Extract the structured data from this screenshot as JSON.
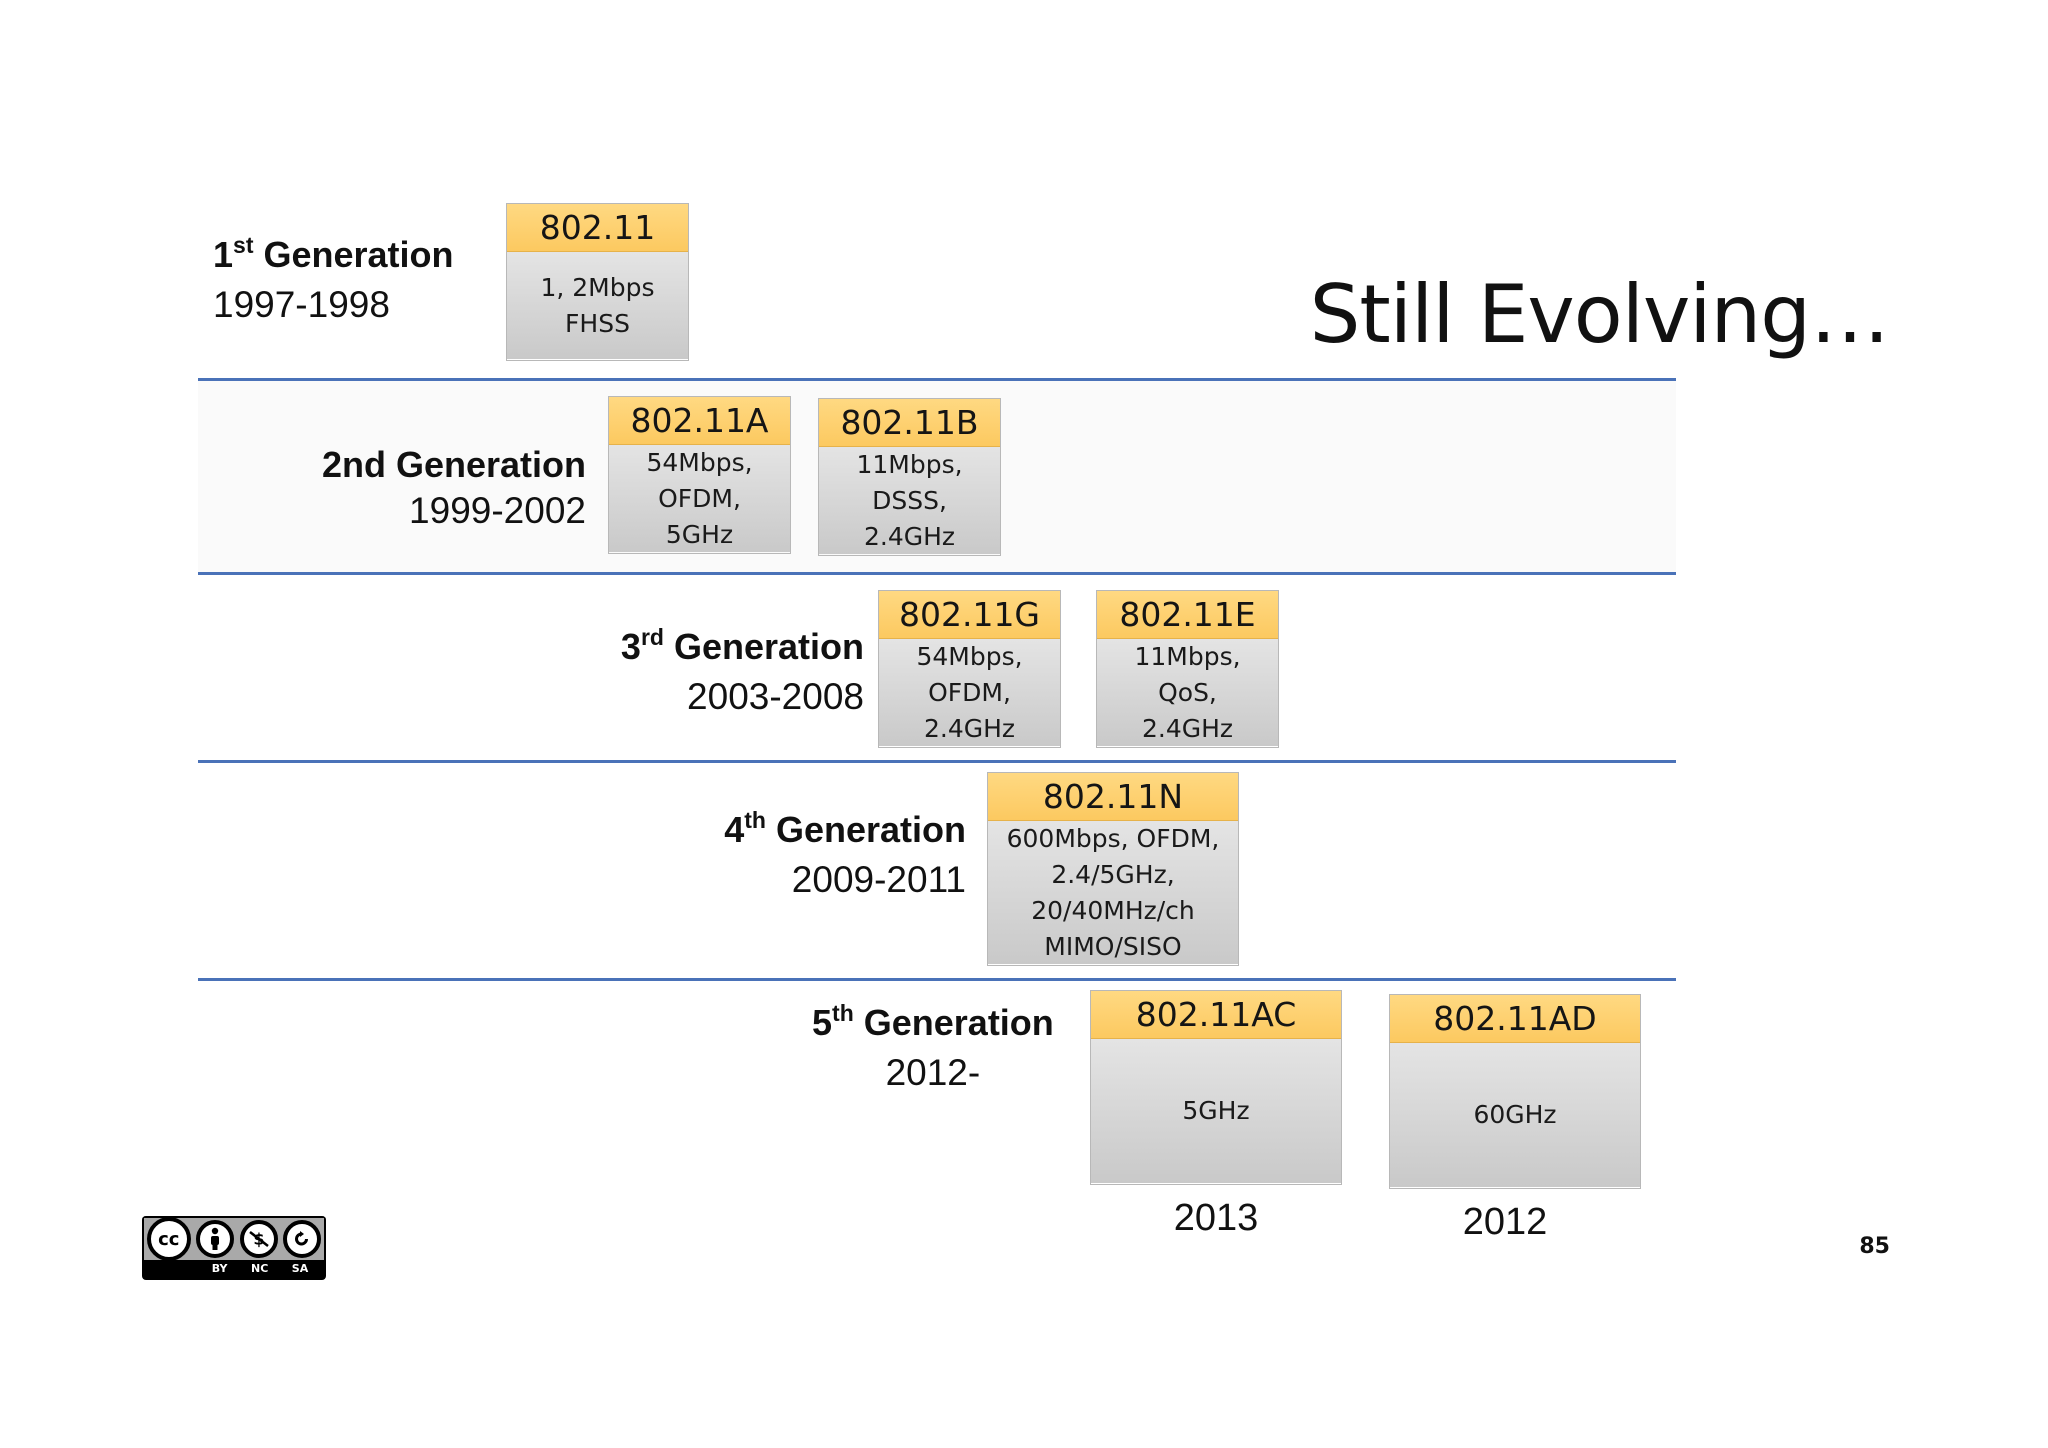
{
  "title": "Still Evolving…",
  "generations": [
    {
      "ordinal": "1",
      "suffix": "st",
      "name": " Generation",
      "years": "1997-1998",
      "standards": [
        {
          "name": "802.11",
          "details": "1, 2Mbps\nFHSS"
        }
      ]
    },
    {
      "ordinal": "",
      "suffix": "",
      "name": "2nd Generation",
      "years": "1999-2002",
      "standards": [
        {
          "name": "802.11A",
          "details": "54Mbps,\nOFDM,\n5GHz"
        },
        {
          "name": "802.11B",
          "details": "11Mbps,\nDSSS,\n2.4GHz"
        }
      ]
    },
    {
      "ordinal": "3",
      "suffix": "rd",
      "name": " Generation",
      "years": "2003-2008",
      "standards": [
        {
          "name": "802.11G",
          "details": "54Mbps,\nOFDM,\n2.4GHz"
        },
        {
          "name": "802.11E",
          "details": "11Mbps,\nQoS,\n2.4GHz"
        }
      ]
    },
    {
      "ordinal": "4",
      "suffix": "th",
      "name": " Generation",
      "years": "2009-2011",
      "standards": [
        {
          "name": "802.11N",
          "details": "600Mbps, OFDM,\n2.4/5GHz,\n20/40MHz/ch\nMIMO/SISO"
        }
      ]
    },
    {
      "ordinal": "5",
      "suffix": "th",
      "name": " Generation",
      "years": "2012-",
      "standards": [
        {
          "name": "802.11AC",
          "details": "5GHz",
          "release_year": "2013"
        },
        {
          "name": "802.11AD",
          "details": "60GHz",
          "release_year": "2012"
        }
      ]
    }
  ],
  "license": {
    "badge": "cc",
    "labels": [
      "BY",
      "NC",
      "SA"
    ],
    "icon": "creative-commons-by-nc-sa-icon"
  },
  "page_number": "85",
  "colors": {
    "divider": "#4a72b8",
    "standard_header": "#fcc960",
    "standard_body": "#d6d6d6"
  }
}
